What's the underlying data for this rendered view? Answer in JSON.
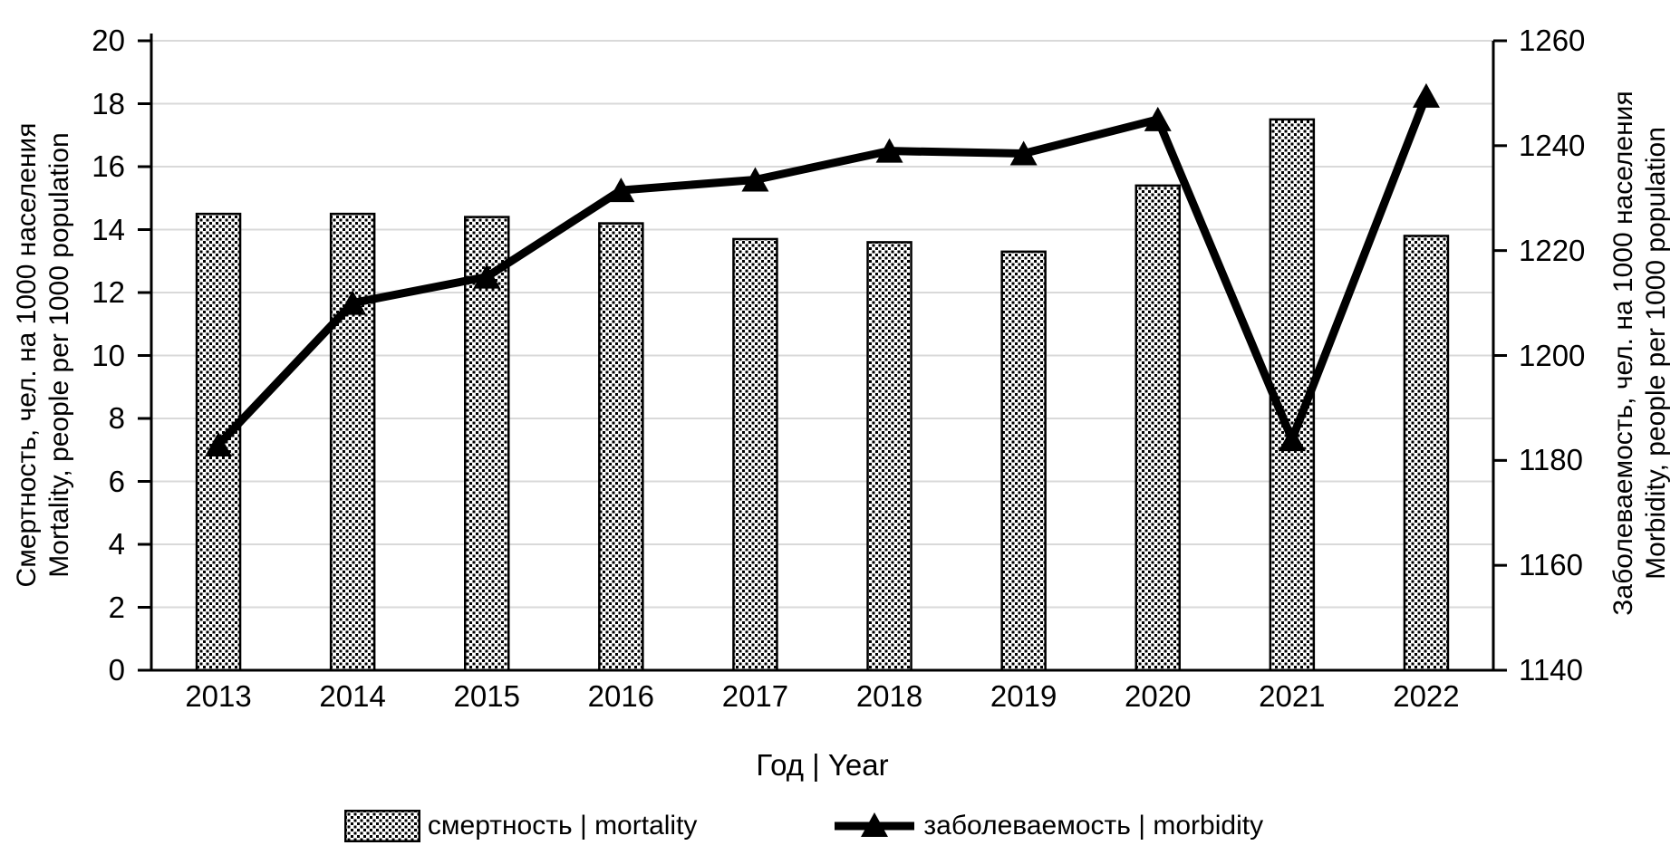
{
  "chart_data": {
    "type": "combo-bar-line",
    "title": "",
    "categories": [
      "2013",
      "2014",
      "2015",
      "2016",
      "2017",
      "2018",
      "2019",
      "2020",
      "2021",
      "2022"
    ],
    "series": [
      {
        "name": "смертность | mortality",
        "type": "bar",
        "axis": "left",
        "values": [
          14.5,
          14.5,
          14.4,
          14.2,
          13.7,
          13.6,
          13.3,
          15.4,
          17.5,
          13.8
        ],
        "fill": "dotted-pattern",
        "stroke": "#000000"
      },
      {
        "name": "заболеваемость | morbidity",
        "type": "line",
        "axis": "right",
        "values": [
          1183,
          1210,
          1215,
          1231.5,
          1233.5,
          1239,
          1238.5,
          1245,
          1184,
          1249.5
        ],
        "marker": "triangle",
        "stroke": "#000000"
      }
    ],
    "xlabel": "Год | Year",
    "left_axis": {
      "label_ru": "Смертность, чел. на 1000 населения",
      "label_en": "Mortality, people per 1000 population",
      "min": 0,
      "max": 20,
      "ticks": [
        0,
        2,
        4,
        6,
        8,
        10,
        12,
        14,
        16,
        18,
        20
      ]
    },
    "right_axis": {
      "label_ru": "Заболеваемость, чел. на 1000 населения",
      "label_en": "Morbidity, people per 1000 population",
      "min": 1140,
      "max": 1260,
      "ticks": [
        1140,
        1160,
        1180,
        1200,
        1220,
        1240,
        1260
      ]
    },
    "legend_position": "bottom",
    "grid": true,
    "colors": {
      "series": "#000000",
      "gridline": "#d9d9d9",
      "axis": "#000000",
      "background": "#ffffff"
    }
  }
}
